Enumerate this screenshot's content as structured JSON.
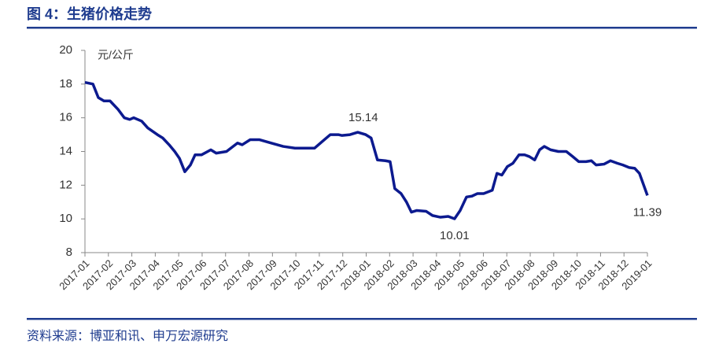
{
  "chart_data": {
    "type": "line",
    "title": "图 4：生猪价格走势",
    "y_label": "元/公斤",
    "source": "资料来源：博亚和讯、申万宏源研究",
    "xlim": [
      0,
      24
    ],
    "xticks": [
      {
        "value": 0,
        "label": "2017-01"
      },
      {
        "value": 1,
        "label": "2017-02"
      },
      {
        "value": 2,
        "label": "2017-03"
      },
      {
        "value": 3,
        "label": "2017-04"
      },
      {
        "value": 4,
        "label": "2017-05"
      },
      {
        "value": 5,
        "label": "2017-06"
      },
      {
        "value": 6,
        "label": "2017-07"
      },
      {
        "value": 7,
        "label": "2017-08"
      },
      {
        "value": 8,
        "label": "2017-09"
      },
      {
        "value": 9,
        "label": "2017-10"
      },
      {
        "value": 10,
        "label": "2017-11"
      },
      {
        "value": 11,
        "label": "2017-12"
      },
      {
        "value": 12,
        "label": "2018-01"
      },
      {
        "value": 13,
        "label": "2018-02"
      },
      {
        "value": 14,
        "label": "2018-03"
      },
      {
        "value": 15,
        "label": "2018-04"
      },
      {
        "value": 16,
        "label": "2018-05"
      },
      {
        "value": 17,
        "label": "2018-06"
      },
      {
        "value": 18,
        "label": "2018-07"
      },
      {
        "value": 19,
        "label": "2018-08"
      },
      {
        "value": 20,
        "label": "2018-09"
      },
      {
        "value": 21,
        "label": "2018-10"
      },
      {
        "value": 22,
        "label": "2018-11"
      },
      {
        "value": 23,
        "label": "2018-12"
      },
      {
        "value": 24,
        "label": "2019-01"
      }
    ],
    "ylim": [
      8,
      20
    ],
    "yticks": [
      8,
      10,
      12,
      14,
      16,
      18,
      20
    ],
    "x": [
      0,
      0.34,
      0.57,
      0.81,
      1.07,
      1.41,
      1.68,
      1.91,
      2.08,
      2.42,
      2.68,
      3.09,
      3.32,
      3.59,
      3.83,
      4.03,
      4.26,
      4.5,
      4.7,
      4.97,
      5.37,
      5.6,
      6.04,
      6.51,
      6.71,
      7.05,
      7.45,
      7.95,
      8.46,
      8.96,
      9.4,
      9.8,
      10.13,
      10.47,
      10.81,
      10.97,
      11.31,
      11.64,
      11.98,
      12.21,
      12.48,
      12.82,
      13.02,
      13.22,
      13.49,
      13.72,
      13.93,
      14.16,
      14.56,
      14.83,
      15.17,
      15.5,
      15.77,
      16.01,
      16.28,
      16.51,
      16.74,
      17.01,
      17.38,
      17.58,
      17.79,
      18.02,
      18.26,
      18.52,
      18.76,
      18.96,
      19.19,
      19.4,
      19.6,
      19.87,
      20.2,
      20.54,
      20.81,
      21.07,
      21.38,
      21.61,
      21.81,
      22.15,
      22.42,
      22.72,
      22.95,
      23.22,
      23.46,
      23.66,
      24
    ],
    "series": [
      {
        "name": "生猪价格",
        "color": "#0c1a8f",
        "values": [
          18.1,
          18.0,
          17.2,
          17.0,
          17.0,
          16.5,
          16.0,
          15.9,
          16.0,
          15.8,
          15.4,
          15.0,
          14.8,
          14.4,
          14.0,
          13.6,
          12.8,
          13.2,
          13.8,
          13.8,
          14.1,
          13.9,
          14.0,
          14.5,
          14.4,
          14.7,
          14.7,
          14.5,
          14.3,
          14.2,
          14.2,
          14.2,
          14.6,
          15.0,
          15.0,
          14.95,
          15.0,
          15.14,
          15.0,
          14.8,
          13.5,
          13.45,
          13.4,
          11.8,
          11.5,
          11.0,
          10.4,
          10.5,
          10.45,
          10.2,
          10.1,
          10.15,
          10.01,
          10.5,
          11.3,
          11.35,
          11.5,
          11.5,
          11.7,
          12.7,
          12.6,
          13.1,
          13.3,
          13.8,
          13.8,
          13.7,
          13.5,
          14.1,
          14.3,
          14.1,
          14.0,
          14.0,
          13.7,
          13.4,
          13.4,
          13.45,
          13.2,
          13.25,
          13.45,
          13.3,
          13.2,
          13.05,
          13.0,
          12.7,
          11.39
        ]
      }
    ],
    "annotations": [
      {
        "x": 11.64,
        "y": 15.14
      },
      {
        "x": 15.77,
        "y": 10.01
      },
      {
        "x": 24,
        "y": 11.39
      }
    ]
  }
}
